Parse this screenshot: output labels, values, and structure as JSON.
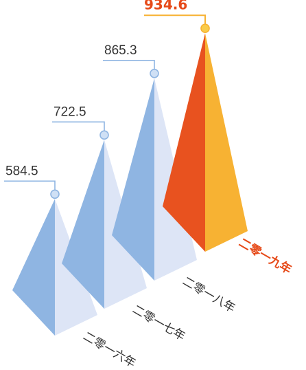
{
  "chart_data": {
    "type": "bar",
    "categories": [
      "二零一六年",
      "二零一七年",
      "二零一八年",
      "二零一九年"
    ],
    "values": [
      584.5,
      722.5,
      865.3,
      934.6
    ],
    "value_labels": [
      "584.5",
      "722.5",
      "865.3",
      "934.6"
    ],
    "highlight_index": 3,
    "colors": {
      "normal_left": "#8fb5e2",
      "normal_right": "#dde5f6",
      "normal_line": "#8fb5e2",
      "normal_dot": "#cfe0f5",
      "highlight_left": "#e8521f",
      "highlight_right": "#f7b233",
      "highlight_line": "#f7b233",
      "highlight_dot": "#f9cc4a",
      "highlight_text": "#e64a19"
    }
  }
}
